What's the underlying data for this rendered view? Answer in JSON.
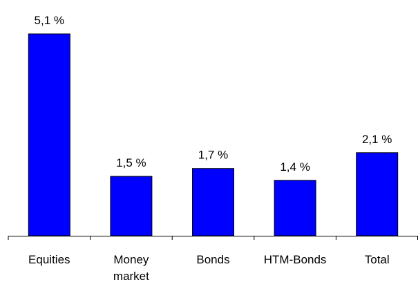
{
  "chart_data": {
    "type": "bar",
    "title": "",
    "xlabel": "",
    "ylabel": "",
    "categories": [
      "Equities",
      "Money market",
      "Bonds",
      "HTM-Bonds",
      "Total"
    ],
    "category_label_lines": [
      [
        "Equities"
      ],
      [
        "Money",
        "market"
      ],
      [
        "Bonds"
      ],
      [
        "HTM-Bonds"
      ],
      [
        "Total"
      ]
    ],
    "values": [
      5.1,
      1.5,
      1.7,
      1.4,
      2.1
    ],
    "data_labels": [
      "5,1 %",
      "1,5 %",
      "1,7 %",
      "1,4 %",
      "2,1 %"
    ],
    "ylim": [
      0,
      5.1
    ],
    "grid": false,
    "legend": "none",
    "bar_color": "#0000ff",
    "bar_outline_color": "#000000",
    "axis_color": "#000000"
  }
}
